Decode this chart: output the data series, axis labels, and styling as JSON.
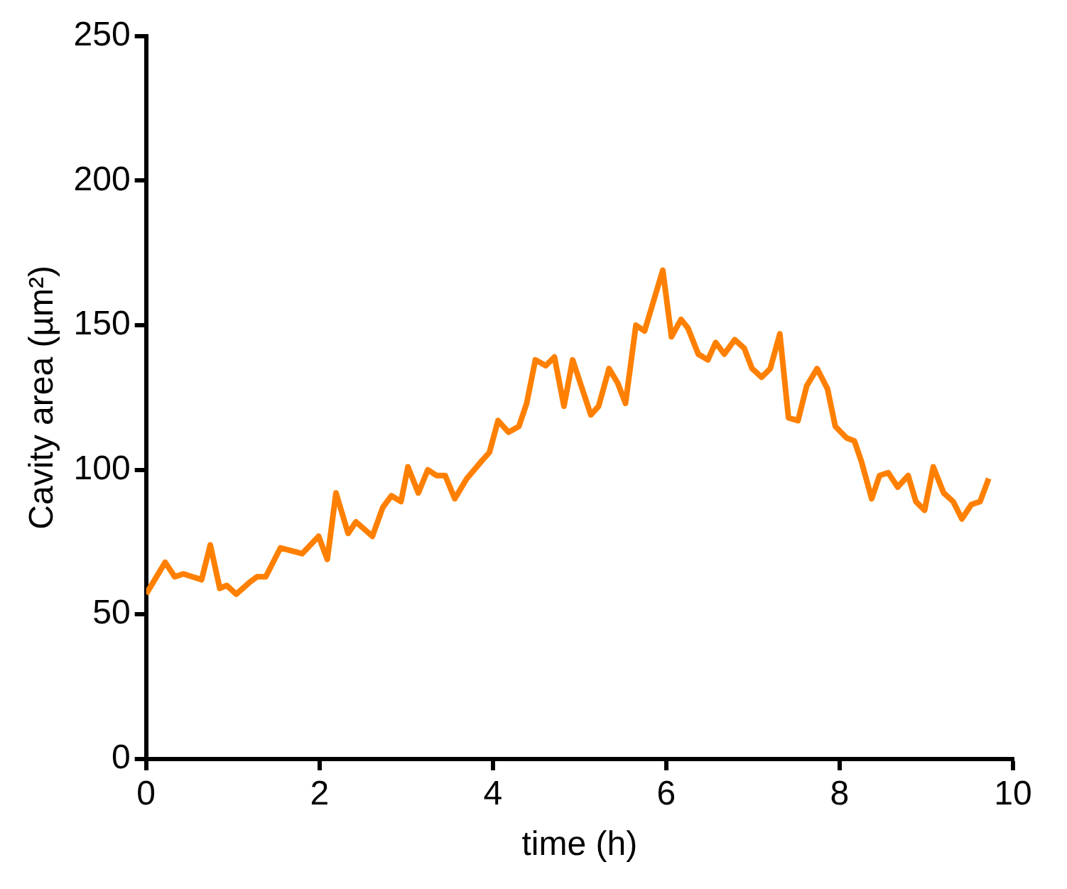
{
  "chart_data": {
    "type": "line",
    "xlabel": "time (h)",
    "ylabel": "Cavity area (µm²)",
    "xlim": [
      0,
      10
    ],
    "xticks": [
      0,
      2,
      4,
      6,
      8,
      10
    ],
    "ylim": [
      0,
      250
    ],
    "yticks": [
      0,
      50,
      100,
      150,
      200,
      250
    ],
    "grid": false,
    "legend": false,
    "marker": "none",
    "line_style": "solid",
    "series": [
      {
        "color": "#ff8000",
        "x": [
          0,
          0.22,
          0.33,
          0.43,
          0.64,
          0.74,
          0.85,
          0.93,
          1.04,
          1.19,
          1.28,
          1.38,
          1.55,
          1.8,
          1.99,
          2.09,
          2.19,
          2.33,
          2.42,
          2.61,
          2.73,
          2.83,
          2.94,
          3.02,
          3.14,
          3.25,
          3.35,
          3.45,
          3.56,
          3.7,
          3.87,
          3.96,
          4.06,
          4.18,
          4.3,
          4.39,
          4.49,
          4.61,
          4.71,
          4.82,
          4.92,
          5.13,
          5.22,
          5.34,
          5.44,
          5.53,
          5.65,
          5.75,
          5.85,
          5.96,
          6.06,
          6.17,
          6.25,
          6.37,
          6.48,
          6.57,
          6.67,
          6.79,
          6.9,
          6.99,
          7.1,
          7.2,
          7.31,
          7.41,
          7.52,
          7.62,
          7.74,
          7.86,
          7.95,
          8.08,
          8.17,
          8.25,
          8.37,
          8.46,
          8.56,
          8.67,
          8.79,
          8.88,
          8.98,
          9.08,
          9.2,
          9.31,
          9.41,
          9.52,
          9.62,
          9.72
        ],
        "values": [
          57,
          68,
          63,
          64,
          62,
          74,
          59,
          60,
          57,
          61,
          63,
          63,
          73,
          71,
          77,
          69,
          92,
          78,
          82,
          77,
          87,
          91,
          89,
          101,
          92,
          100,
          98,
          98,
          90,
          97,
          103,
          106,
          117,
          113,
          115,
          123,
          138,
          136,
          139,
          122,
          138,
          119,
          122,
          135,
          130,
          123,
          150,
          148,
          158,
          169,
          146,
          152,
          149,
          140,
          138,
          144,
          140,
          145,
          142,
          135,
          132,
          135,
          147,
          118,
          117,
          129,
          135,
          128,
          115,
          111,
          110,
          103,
          90,
          98,
          99,
          94,
          98,
          89,
          86,
          101,
          92,
          89,
          83,
          88,
          89,
          97
        ]
      }
    ]
  }
}
